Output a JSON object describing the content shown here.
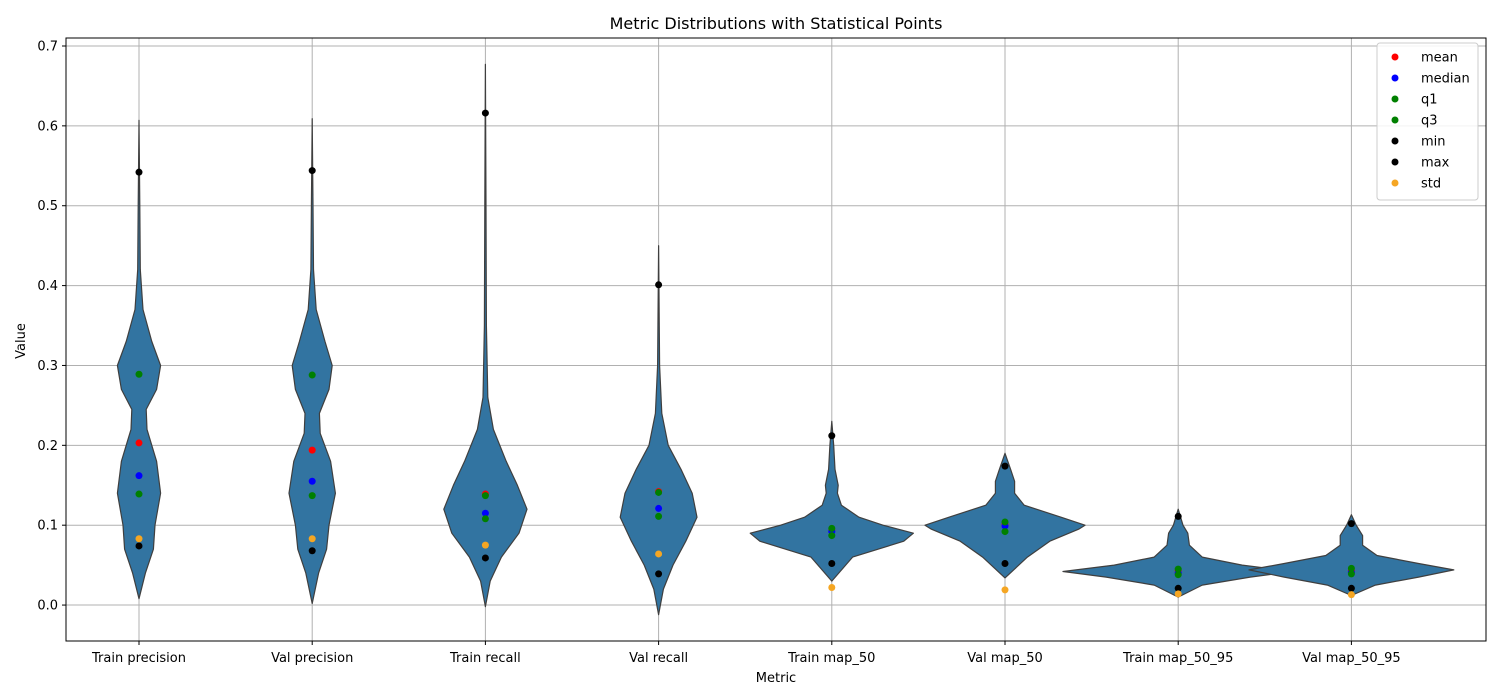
{
  "chart_data": {
    "type": "violin",
    "title": "Metric Distributions with Statistical Points",
    "xlabel": "Metric",
    "ylabel": "Value",
    "ylim": [
      -0.045,
      0.71
    ],
    "yticks": [
      0.0,
      0.1,
      0.2,
      0.3,
      0.4,
      0.5,
      0.6,
      0.7
    ],
    "ytick_labels": [
      "0.0",
      "0.1",
      "0.2",
      "0.3",
      "0.4",
      "0.5",
      "0.6",
      "0.7"
    ],
    "grid": true,
    "legend_position": "top-right",
    "violin_color": "#3274a1",
    "categories": [
      "Train precision",
      "Val precision",
      "Train recall",
      "Val recall",
      "Train map_50",
      "Val map_50",
      "Train map_50_95",
      "Val map_50_95"
    ],
    "series": [
      {
        "name": "mean",
        "color": "#ff0000",
        "values": [
          0.203,
          0.194,
          0.139,
          0.142,
          0.094,
          0.101,
          0.043,
          0.043
        ]
      },
      {
        "name": "median",
        "color": "#0000ff",
        "values": [
          0.162,
          0.155,
          0.115,
          0.121,
          0.092,
          0.099,
          0.04,
          0.041
        ]
      },
      {
        "name": "q1",
        "color": "#008000",
        "values": [
          0.139,
          0.137,
          0.108,
          0.111,
          0.087,
          0.092,
          0.038,
          0.039
        ]
      },
      {
        "name": "q3",
        "color": "#008000",
        "values": [
          0.289,
          0.288,
          0.137,
          0.141,
          0.096,
          0.104,
          0.045,
          0.046
        ]
      },
      {
        "name": "min",
        "color": "#000000",
        "values": [
          0.074,
          0.068,
          0.059,
          0.039,
          0.052,
          0.052,
          0.021,
          0.021
        ]
      },
      {
        "name": "max",
        "color": "#000000",
        "values": [
          0.542,
          0.544,
          0.616,
          0.401,
          0.212,
          0.174,
          0.111,
          0.102
        ]
      },
      {
        "name": "std",
        "color": "#f5a623",
        "values": [
          0.083,
          0.083,
          0.075,
          0.064,
          0.022,
          0.019,
          0.014,
          0.013
        ]
      }
    ],
    "violins": [
      {
        "range": [
          0.008,
          0.607
        ],
        "profile": [
          [
            0.008,
            0.0
          ],
          [
            0.04,
            0.4
          ],
          [
            0.07,
            0.9
          ],
          [
            0.1,
            1.0
          ],
          [
            0.14,
            1.35
          ],
          [
            0.18,
            1.1
          ],
          [
            0.22,
            0.5
          ],
          [
            0.245,
            0.45
          ],
          [
            0.27,
            1.1
          ],
          [
            0.3,
            1.35
          ],
          [
            0.33,
            0.8
          ],
          [
            0.37,
            0.25
          ],
          [
            0.42,
            0.08
          ],
          [
            0.5,
            0.05
          ],
          [
            0.607,
            0.0
          ]
        ]
      },
      {
        "range": [
          0.002,
          0.609
        ],
        "profile": [
          [
            0.002,
            0.0
          ],
          [
            0.04,
            0.4
          ],
          [
            0.07,
            0.9
          ],
          [
            0.1,
            1.05
          ],
          [
            0.14,
            1.45
          ],
          [
            0.18,
            1.15
          ],
          [
            0.215,
            0.5
          ],
          [
            0.24,
            0.45
          ],
          [
            0.27,
            1.05
          ],
          [
            0.3,
            1.25
          ],
          [
            0.33,
            0.8
          ],
          [
            0.37,
            0.25
          ],
          [
            0.42,
            0.08
          ],
          [
            0.5,
            0.05
          ],
          [
            0.609,
            0.0
          ]
        ]
      },
      {
        "range": [
          -0.002,
          0.677
        ],
        "profile": [
          [
            -0.002,
            0.0
          ],
          [
            0.03,
            0.3
          ],
          [
            0.06,
            1.0
          ],
          [
            0.09,
            2.1
          ],
          [
            0.12,
            2.6
          ],
          [
            0.15,
            2.0
          ],
          [
            0.18,
            1.3
          ],
          [
            0.22,
            0.5
          ],
          [
            0.26,
            0.15
          ],
          [
            0.35,
            0.06
          ],
          [
            0.5,
            0.04
          ],
          [
            0.677,
            0.0
          ]
        ]
      },
      {
        "range": [
          -0.012,
          0.452
        ],
        "profile": [
          [
            -0.012,
            0.0
          ],
          [
            0.02,
            0.3
          ],
          [
            0.05,
            0.9
          ],
          [
            0.08,
            1.7
          ],
          [
            0.11,
            2.4
          ],
          [
            0.14,
            2.1
          ],
          [
            0.17,
            1.4
          ],
          [
            0.2,
            0.6
          ],
          [
            0.24,
            0.2
          ],
          [
            0.3,
            0.06
          ],
          [
            0.45,
            0.0
          ]
        ]
      },
      {
        "range": [
          0.03,
          0.23
        ],
        "profile": [
          [
            0.03,
            0.0
          ],
          [
            0.06,
            1.3
          ],
          [
            0.08,
            4.5
          ],
          [
            0.09,
            5.1
          ],
          [
            0.1,
            3.2
          ],
          [
            0.11,
            1.7
          ],
          [
            0.125,
            0.6
          ],
          [
            0.14,
            0.35
          ],
          [
            0.15,
            0.4
          ],
          [
            0.17,
            0.2
          ],
          [
            0.2,
            0.12
          ],
          [
            0.23,
            0.0
          ]
        ]
      },
      {
        "range": [
          0.034,
          0.19
        ],
        "profile": [
          [
            0.034,
            0.0
          ],
          [
            0.06,
            1.4
          ],
          [
            0.08,
            2.8
          ],
          [
            0.095,
            4.6
          ],
          [
            0.1,
            5.0
          ],
          [
            0.11,
            3.5
          ],
          [
            0.125,
            1.2
          ],
          [
            0.14,
            0.6
          ],
          [
            0.155,
            0.6
          ],
          [
            0.17,
            0.35
          ],
          [
            0.19,
            0.0
          ]
        ]
      },
      {
        "range": [
          0.01,
          0.12
        ],
        "profile": [
          [
            0.01,
            0.0
          ],
          [
            0.025,
            1.5
          ],
          [
            0.035,
            4.5
          ],
          [
            0.042,
            7.2
          ],
          [
            0.05,
            4.0
          ],
          [
            0.06,
            1.5
          ],
          [
            0.075,
            0.7
          ],
          [
            0.09,
            0.6
          ],
          [
            0.1,
            0.3
          ],
          [
            0.12,
            0.0
          ]
        ]
      },
      {
        "range": [
          0.012,
          0.113
        ],
        "profile": [
          [
            0.012,
            0.0
          ],
          [
            0.025,
            1.5
          ],
          [
            0.035,
            4.2
          ],
          [
            0.044,
            6.4
          ],
          [
            0.052,
            4.2
          ],
          [
            0.062,
            1.6
          ],
          [
            0.075,
            0.7
          ],
          [
            0.087,
            0.7
          ],
          [
            0.1,
            0.3
          ],
          [
            0.113,
            0.0
          ]
        ]
      }
    ]
  }
}
